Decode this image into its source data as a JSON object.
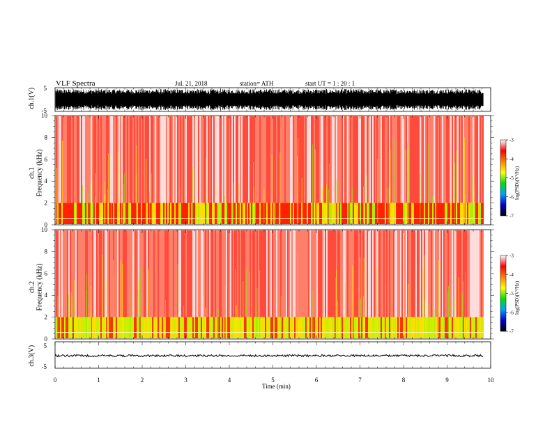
{
  "header": {
    "title": "VLF  Spectra",
    "date": "Jul.  21, 2018",
    "station": "station= ATH",
    "start": "start  UT  =   1  : 20 : 1"
  },
  "axis_labels": {
    "ch1_wave": "ch.1(V)",
    "ch1_spec_line1": "ch.1",
    "ch1_spec_line2": "Frequency  (kHz)",
    "ch2_spec_line1": "ch.2",
    "ch2_spec_line2": "Frequency  (kHz)",
    "ch3_wave": "ch.3(V)",
    "time": "Time  (min)",
    "colorbar": "log(PSD)(V²/Hz)"
  },
  "chart_data": [
    {
      "type": "line",
      "name": "ch.1 waveform",
      "ylabel": "ch.1(V)",
      "ylim": [
        -5,
        5
      ],
      "yticks": [
        "5",
        "-5"
      ],
      "xlim": [
        0,
        10
      ],
      "description_amplitude": [
        -5,
        5
      ]
    },
    {
      "type": "heatmap",
      "ylabel": "Frequency  (kHz)",
      "ylim": [
        0,
        10
      ],
      "yticks": [
        "0",
        "2",
        "4",
        "6",
        "8",
        "10"
      ],
      "xlim": [
        0,
        10
      ],
      "colorbar": {
        "ticks": [
          "-3",
          "-4",
          "-5",
          "-6",
          "-7"
        ],
        "range": [
          -7,
          -3
        ]
      }
    },
    {
      "type": "heatmap",
      "ylabel": "Frequency  (kHz)",
      "ylim": [
        0,
        10
      ],
      "yticks": [
        "0",
        "2",
        "4",
        "6",
        "8",
        "10"
      ],
      "xlim": [
        0,
        10
      ],
      "colorbar": {
        "ticks": [
          "-3",
          "-4",
          "-5",
          "-6",
          "-7"
        ],
        "range": [
          -7,
          -3
        ]
      }
    },
    {
      "type": "line",
      "name": "ch.3 waveform",
      "ylabel": "ch.3(V)",
      "ylim": [
        -5,
        5
      ],
      "yticks": [
        "5",
        "-5"
      ],
      "xlim": [
        0,
        10
      ]
    }
  ],
  "x_axis": {
    "ticks": [
      "0",
      "1",
      "2",
      "3",
      "4",
      "5",
      "6",
      "7",
      "8",
      "9",
      "10"
    ],
    "data_end_min": 9.83
  },
  "colors": {
    "colormap": [
      "#000000",
      "#0000ff",
      "#00aaff",
      "#00ff00",
      "#ffff00",
      "#ff8800",
      "#ff0000",
      "#ffffff"
    ]
  }
}
